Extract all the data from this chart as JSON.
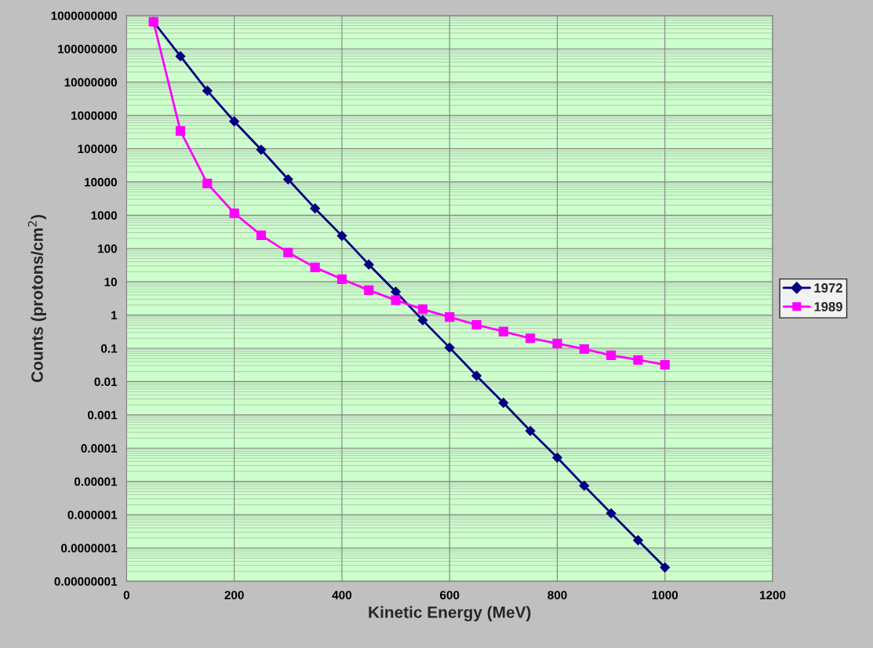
{
  "chart_data": {
    "type": "line",
    "xlabel": "Kinetic Energy (MeV)",
    "ylabel": "Counts (protons/cm$^{2}$)",
    "log": "y",
    "grid": true,
    "legend": "right",
    "x": [
      50,
      100,
      150,
      200,
      250,
      300,
      350,
      400,
      450,
      500,
      550,
      600,
      650,
      700,
      750,
      800,
      850,
      900,
      950,
      1000
    ],
    "series": [
      {
        "name": "1972",
        "color": "#000080",
        "marker": "diamond",
        "values": [
          650000000,
          60000000,
          5500000,
          660000,
          93000,
          12000,
          1600,
          240,
          33,
          5,
          0.7,
          0.105,
          0.015,
          0.0023,
          0.00033,
          5.2e-05,
          7.4e-06,
          1.1e-06,
          1.7e-07,
          2.6e-08
        ]
      },
      {
        "name": "1989",
        "color": "#ff00ff",
        "marker": "square",
        "values": [
          650000000,
          340000,
          9000,
          1150,
          250,
          76,
          27,
          12,
          5.6,
          2.8,
          1.5,
          0.87,
          0.51,
          0.32,
          0.2,
          0.14,
          0.095,
          0.062,
          0.045,
          0.032
        ]
      }
    ],
    "xlim": [
      0,
      1200
    ],
    "xticks": [
      0,
      200,
      400,
      600,
      800,
      1000,
      1200
    ],
    "ylim": [
      1e-08,
      1000000000
    ],
    "yticks": [
      {
        "value": 1e-08,
        "label": "0.00000001"
      },
      {
        "value": 1e-07,
        "label": "0.0000001"
      },
      {
        "value": 1e-06,
        "label": "0.000001"
      },
      {
        "value": 1e-05,
        "label": "0.00001"
      },
      {
        "value": 0.0001,
        "label": "0.0001"
      },
      {
        "value": 0.001,
        "label": "0.001"
      },
      {
        "value": 0.01,
        "label": "0.01"
      },
      {
        "value": 0.1,
        "label": "0.1"
      },
      {
        "value": 1,
        "label": "1"
      },
      {
        "value": 10,
        "label": "10"
      },
      {
        "value": 100,
        "label": "100"
      },
      {
        "value": 1000,
        "label": "1000"
      },
      {
        "value": 10000,
        "label": "10000"
      },
      {
        "value": 100000,
        "label": "100000"
      },
      {
        "value": 1000000,
        "label": "1000000"
      },
      {
        "value": 10000000,
        "label": "10000000"
      },
      {
        "value": 100000000,
        "label": "100000000"
      },
      {
        "value": 1000000000,
        "label": "1000000000"
      }
    ]
  }
}
